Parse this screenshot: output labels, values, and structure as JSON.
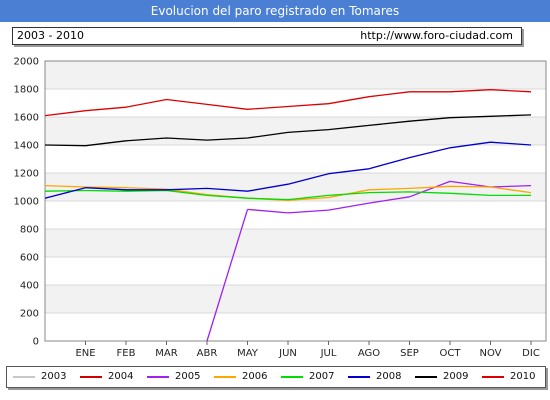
{
  "header": {
    "title": "Evolucion del paro registrado en Tomares",
    "range_label": "2003 - 2010",
    "url_label": "http://www.foro-ciudad.com"
  },
  "chart_data": {
    "type": "line",
    "categories": [
      "ENE",
      "FEB",
      "MAR",
      "ABR",
      "MAY",
      "JUN",
      "JUL",
      "AGO",
      "SEP",
      "OCT",
      "NOV",
      "DIC"
    ],
    "ylim": [
      0,
      2000
    ],
    "yticks": [
      0,
      200,
      400,
      600,
      800,
      1000,
      1200,
      1400,
      1600,
      1800,
      2000
    ],
    "grid": true,
    "legend_placement": "bottom",
    "series": [
      {
        "name": "2003",
        "color": "#c8c8c8",
        "values": [
          null,
          null,
          null,
          null,
          null,
          null,
          null,
          null,
          null,
          null,
          null,
          null
        ]
      },
      {
        "name": "2004",
        "color": "#d00000",
        "values": [
          null,
          null,
          null,
          null,
          null,
          null,
          null,
          null,
          null,
          null,
          null,
          null
        ]
      },
      {
        "name": "2005",
        "color": "#a020f0",
        "values": [
          null,
          null,
          null,
          null,
          940,
          915,
          935,
          985,
          1030,
          1140,
          1100,
          1110
        ]
      },
      {
        "name": "2006",
        "color": "#ffa500",
        "values": [
          1100,
          1095,
          1085,
          1045,
          1020,
          1005,
          1025,
          1080,
          1090,
          1105,
          1100,
          1060
        ]
      },
      {
        "name": "2007",
        "color": "#00dd00",
        "values": [
          1075,
          1070,
          1075,
          1040,
          1020,
          1010,
          1040,
          1060,
          1065,
          1055,
          1040,
          1040
        ]
      },
      {
        "name": "2008",
        "color": "#0000cc",
        "values": [
          1095,
          1080,
          1080,
          1090,
          1070,
          1120,
          1195,
          1230,
          1310,
          1380,
          1420,
          1400
        ]
      },
      {
        "name": "2009",
        "color": "#000000",
        "values": [
          1395,
          1430,
          1450,
          1435,
          1450,
          1490,
          1510,
          1540,
          1570,
          1595,
          1605,
          1615
        ]
      },
      {
        "name": "2010",
        "color": "#dd0000",
        "values": [
          1645,
          1670,
          1725,
          1690,
          1655,
          1675,
          1695,
          1745,
          1780,
          1780,
          1795,
          1780
        ]
      }
    ],
    "partial_segments": [
      {
        "series": "2005",
        "from": {
          "x": "ABR",
          "y": 0
        },
        "to": {
          "x": "MAY",
          "y": 940
        }
      },
      {
        "series": "2006",
        "from": {
          "x": "",
          "y": 1110
        },
        "to": {
          "x": "ENE",
          "y": 1100
        }
      },
      {
        "series": "2007",
        "from": {
          "x": "",
          "y": 1070
        },
        "to": {
          "x": "ENE",
          "y": 1075
        }
      },
      {
        "series": "2008",
        "from": {
          "x": "",
          "y": 1020
        },
        "to": {
          "x": "ENE",
          "y": 1095
        }
      },
      {
        "series": "2009",
        "from": {
          "x": "",
          "y": 1400
        },
        "to": {
          "x": "ENE",
          "y": 1395
        }
      },
      {
        "series": "2010",
        "from": {
          "x": "",
          "y": 1610
        },
        "to": {
          "x": "ENE",
          "y": 1645
        }
      }
    ]
  }
}
